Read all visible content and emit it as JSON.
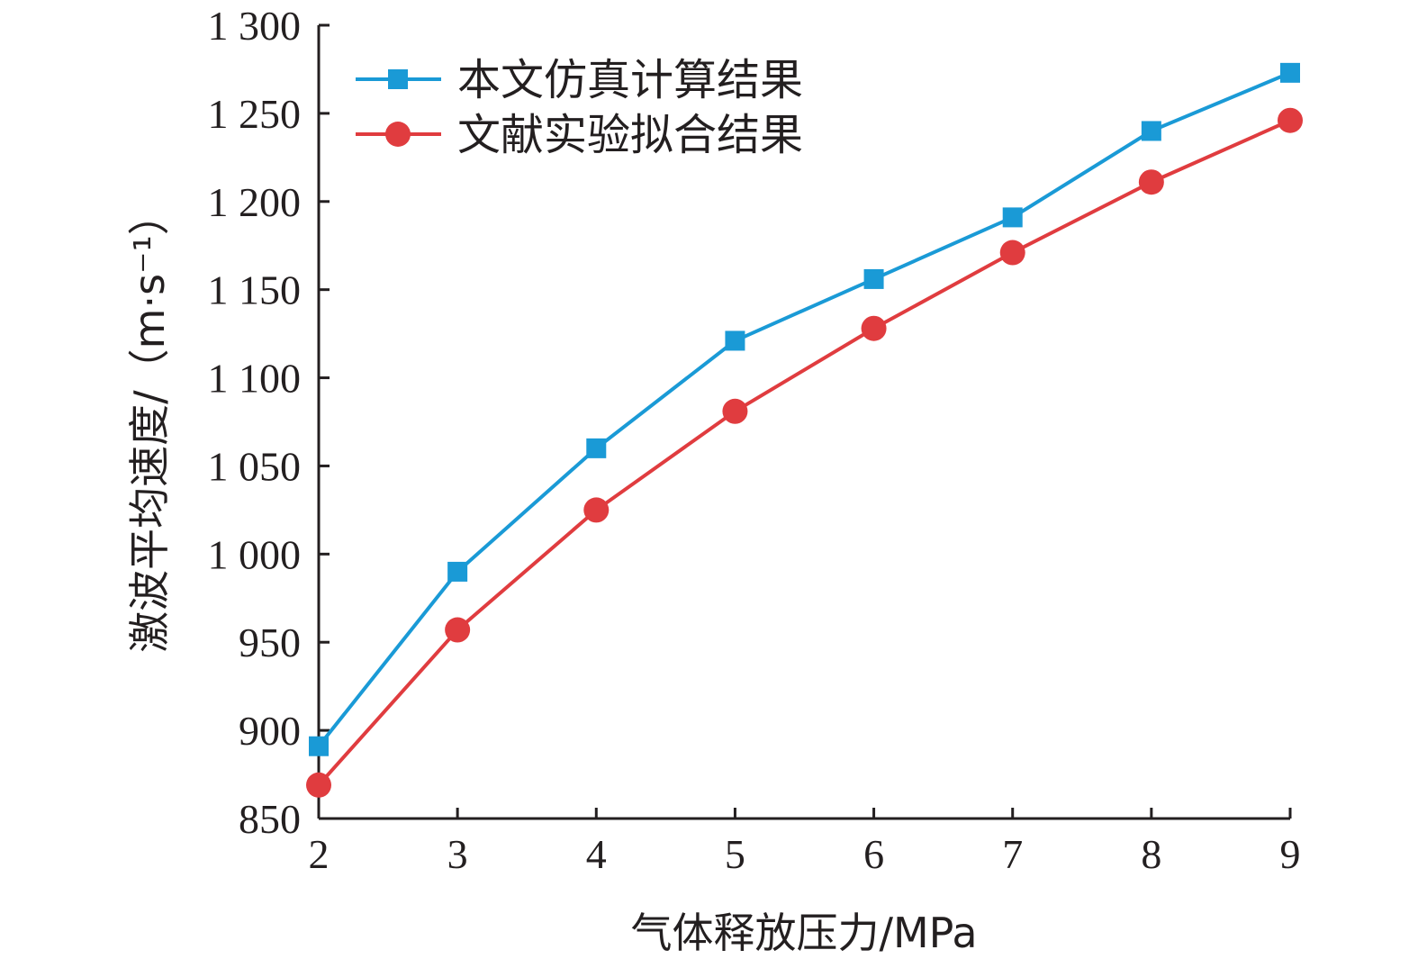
{
  "chart_data": {
    "type": "line",
    "xlabel": "气体释放压力/MPa",
    "ylabel": "激波平均速度/（m·s⁻¹）",
    "x": [
      2,
      3,
      4,
      5,
      6,
      7,
      8,
      9
    ],
    "xlim": [
      2,
      9
    ],
    "ylim": [
      850,
      1300
    ],
    "x_ticks": [
      "2",
      "3",
      "4",
      "5",
      "6",
      "7",
      "8",
      "9"
    ],
    "y_ticks": [
      "850",
      "900",
      "950",
      "1 000",
      "1 050",
      "1 100",
      "1 150",
      "1 200",
      "1 250",
      "1 300"
    ],
    "y_tick_values": [
      850,
      900,
      950,
      1000,
      1050,
      1100,
      1150,
      1200,
      1250,
      1300
    ],
    "grid": false,
    "legend_position": "top-left",
    "series": [
      {
        "name": "本文仿真计算结果",
        "color": "#1a9ad6",
        "marker": "square",
        "values": [
          891,
          990,
          1060,
          1121,
          1156,
          1191,
          1240,
          1273
        ]
      },
      {
        "name": "文献实验拟合结果",
        "color": "#e03c3f",
        "marker": "circle",
        "values": [
          869,
          957,
          1025,
          1081,
          1128,
          1171,
          1211,
          1246
        ]
      }
    ]
  }
}
